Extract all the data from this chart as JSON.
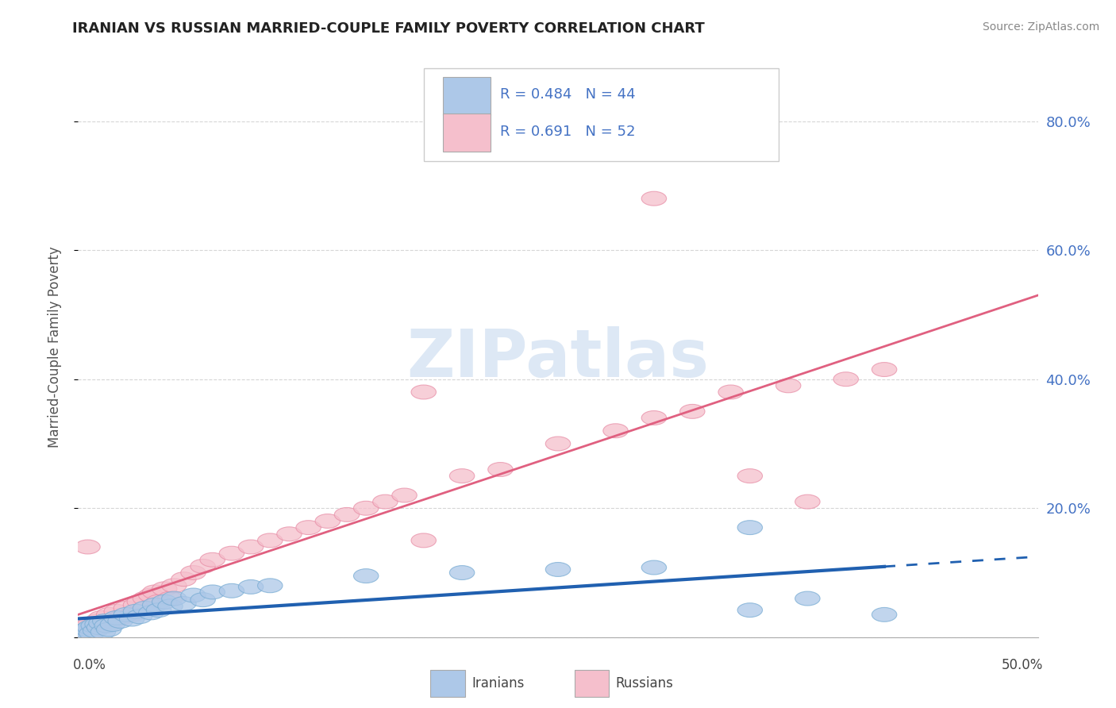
{
  "title": "IRANIAN VS RUSSIAN MARRIED-COUPLE FAMILY POVERTY CORRELATION CHART",
  "source": "Source: ZipAtlas.com",
  "ylabel": "Married-Couple Family Poverty",
  "iranian_R": 0.484,
  "iranian_N": 44,
  "russian_R": 0.691,
  "russian_N": 52,
  "iranian_color": "#adc8e8",
  "russian_color": "#f5bfcc",
  "iranian_edge_color": "#7aadd4",
  "russian_edge_color": "#e890a8",
  "iranian_line_color": "#2060b0",
  "russian_line_color": "#e06080",
  "watermark_color": "#dde8f5",
  "background_color": "#ffffff",
  "grid_color": "#cccccc",
  "title_color": "#222222",
  "source_color": "#888888",
  "axis_label_color": "#4472c4",
  "scatter_alpha": 0.75,
  "iranian_points": [
    [
      0.002,
      0.005
    ],
    [
      0.003,
      0.01
    ],
    [
      0.004,
      0.008
    ],
    [
      0.005,
      0.012
    ],
    [
      0.006,
      0.015
    ],
    [
      0.007,
      0.006
    ],
    [
      0.008,
      0.018
    ],
    [
      0.009,
      0.01
    ],
    [
      0.01,
      0.02
    ],
    [
      0.011,
      0.015
    ],
    [
      0.012,
      0.022
    ],
    [
      0.013,
      0.008
    ],
    [
      0.014,
      0.025
    ],
    [
      0.015,
      0.018
    ],
    [
      0.016,
      0.012
    ],
    [
      0.018,
      0.02
    ],
    [
      0.02,
      0.03
    ],
    [
      0.022,
      0.025
    ],
    [
      0.025,
      0.035
    ],
    [
      0.028,
      0.028
    ],
    [
      0.03,
      0.04
    ],
    [
      0.032,
      0.032
    ],
    [
      0.035,
      0.045
    ],
    [
      0.038,
      0.038
    ],
    [
      0.04,
      0.05
    ],
    [
      0.042,
      0.042
    ],
    [
      0.045,
      0.055
    ],
    [
      0.048,
      0.048
    ],
    [
      0.05,
      0.06
    ],
    [
      0.055,
      0.052
    ],
    [
      0.06,
      0.065
    ],
    [
      0.065,
      0.058
    ],
    [
      0.07,
      0.07
    ],
    [
      0.08,
      0.072
    ],
    [
      0.09,
      0.078
    ],
    [
      0.1,
      0.08
    ],
    [
      0.15,
      0.095
    ],
    [
      0.2,
      0.1
    ],
    [
      0.25,
      0.105
    ],
    [
      0.3,
      0.108
    ],
    [
      0.35,
      0.042
    ],
    [
      0.38,
      0.06
    ],
    [
      0.42,
      0.035
    ],
    [
      0.35,
      0.17
    ]
  ],
  "russian_points": [
    [
      0.002,
      0.01
    ],
    [
      0.004,
      0.015
    ],
    [
      0.006,
      0.02
    ],
    [
      0.008,
      0.012
    ],
    [
      0.01,
      0.025
    ],
    [
      0.012,
      0.03
    ],
    [
      0.014,
      0.018
    ],
    [
      0.016,
      0.035
    ],
    [
      0.018,
      0.025
    ],
    [
      0.02,
      0.04
    ],
    [
      0.022,
      0.03
    ],
    [
      0.025,
      0.045
    ],
    [
      0.028,
      0.035
    ],
    [
      0.03,
      0.05
    ],
    [
      0.032,
      0.055
    ],
    [
      0.035,
      0.06
    ],
    [
      0.038,
      0.065
    ],
    [
      0.04,
      0.07
    ],
    [
      0.042,
      0.055
    ],
    [
      0.045,
      0.075
    ],
    [
      0.048,
      0.06
    ],
    [
      0.05,
      0.08
    ],
    [
      0.055,
      0.09
    ],
    [
      0.06,
      0.1
    ],
    [
      0.065,
      0.11
    ],
    [
      0.07,
      0.12
    ],
    [
      0.08,
      0.13
    ],
    [
      0.09,
      0.14
    ],
    [
      0.1,
      0.15
    ],
    [
      0.11,
      0.16
    ],
    [
      0.12,
      0.17
    ],
    [
      0.13,
      0.18
    ],
    [
      0.14,
      0.19
    ],
    [
      0.15,
      0.2
    ],
    [
      0.16,
      0.21
    ],
    [
      0.17,
      0.22
    ],
    [
      0.18,
      0.15
    ],
    [
      0.2,
      0.25
    ],
    [
      0.22,
      0.26
    ],
    [
      0.25,
      0.3
    ],
    [
      0.28,
      0.32
    ],
    [
      0.3,
      0.34
    ],
    [
      0.32,
      0.35
    ],
    [
      0.34,
      0.38
    ],
    [
      0.35,
      0.25
    ],
    [
      0.37,
      0.39
    ],
    [
      0.4,
      0.4
    ],
    [
      0.42,
      0.415
    ],
    [
      0.3,
      0.68
    ],
    [
      0.005,
      0.14
    ],
    [
      0.18,
      0.38
    ],
    [
      0.38,
      0.21
    ]
  ],
  "xlim": [
    0.0,
    0.5
  ],
  "ylim": [
    0.0,
    0.9
  ],
  "ytick_positions": [
    0.0,
    0.2,
    0.4,
    0.6,
    0.8
  ],
  "ytick_labels": [
    "",
    "20.0%",
    "40.0%",
    "60.0%",
    "80.0%"
  ]
}
